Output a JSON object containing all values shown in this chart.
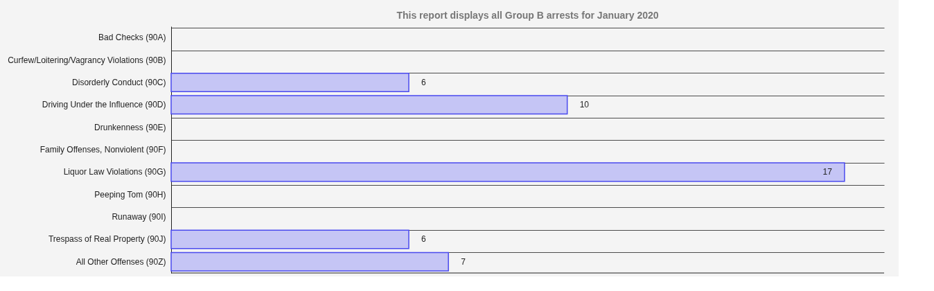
{
  "chart_data": {
    "type": "bar",
    "orientation": "horizontal",
    "title": "This report displays all Group B arrests for  January 2020",
    "categories": [
      "Bad Checks (90A)",
      "Curfew/Loitering/Vagrancy Violations (90B)",
      "Disorderly Conduct (90C)",
      "Driving Under the Influence (90D)",
      "Drunkenness (90E)",
      "Family Offenses, Nonviolent (90F)",
      "Liquor Law Violations (90G)",
      "Peeping Tom (90H)",
      "Runaway (90I)",
      "Trespass of Real Property (90J)",
      "All Other Offenses (90Z)"
    ],
    "values": [
      0,
      0,
      6,
      10,
      0,
      0,
      17,
      0,
      0,
      6,
      7
    ],
    "value_labels": [
      null,
      null,
      "6",
      "10",
      null,
      null,
      "17",
      null,
      null,
      "6",
      "7"
    ],
    "color": "#c5c5f5",
    "xlim": [
      0,
      18
    ],
    "grid": "y"
  }
}
